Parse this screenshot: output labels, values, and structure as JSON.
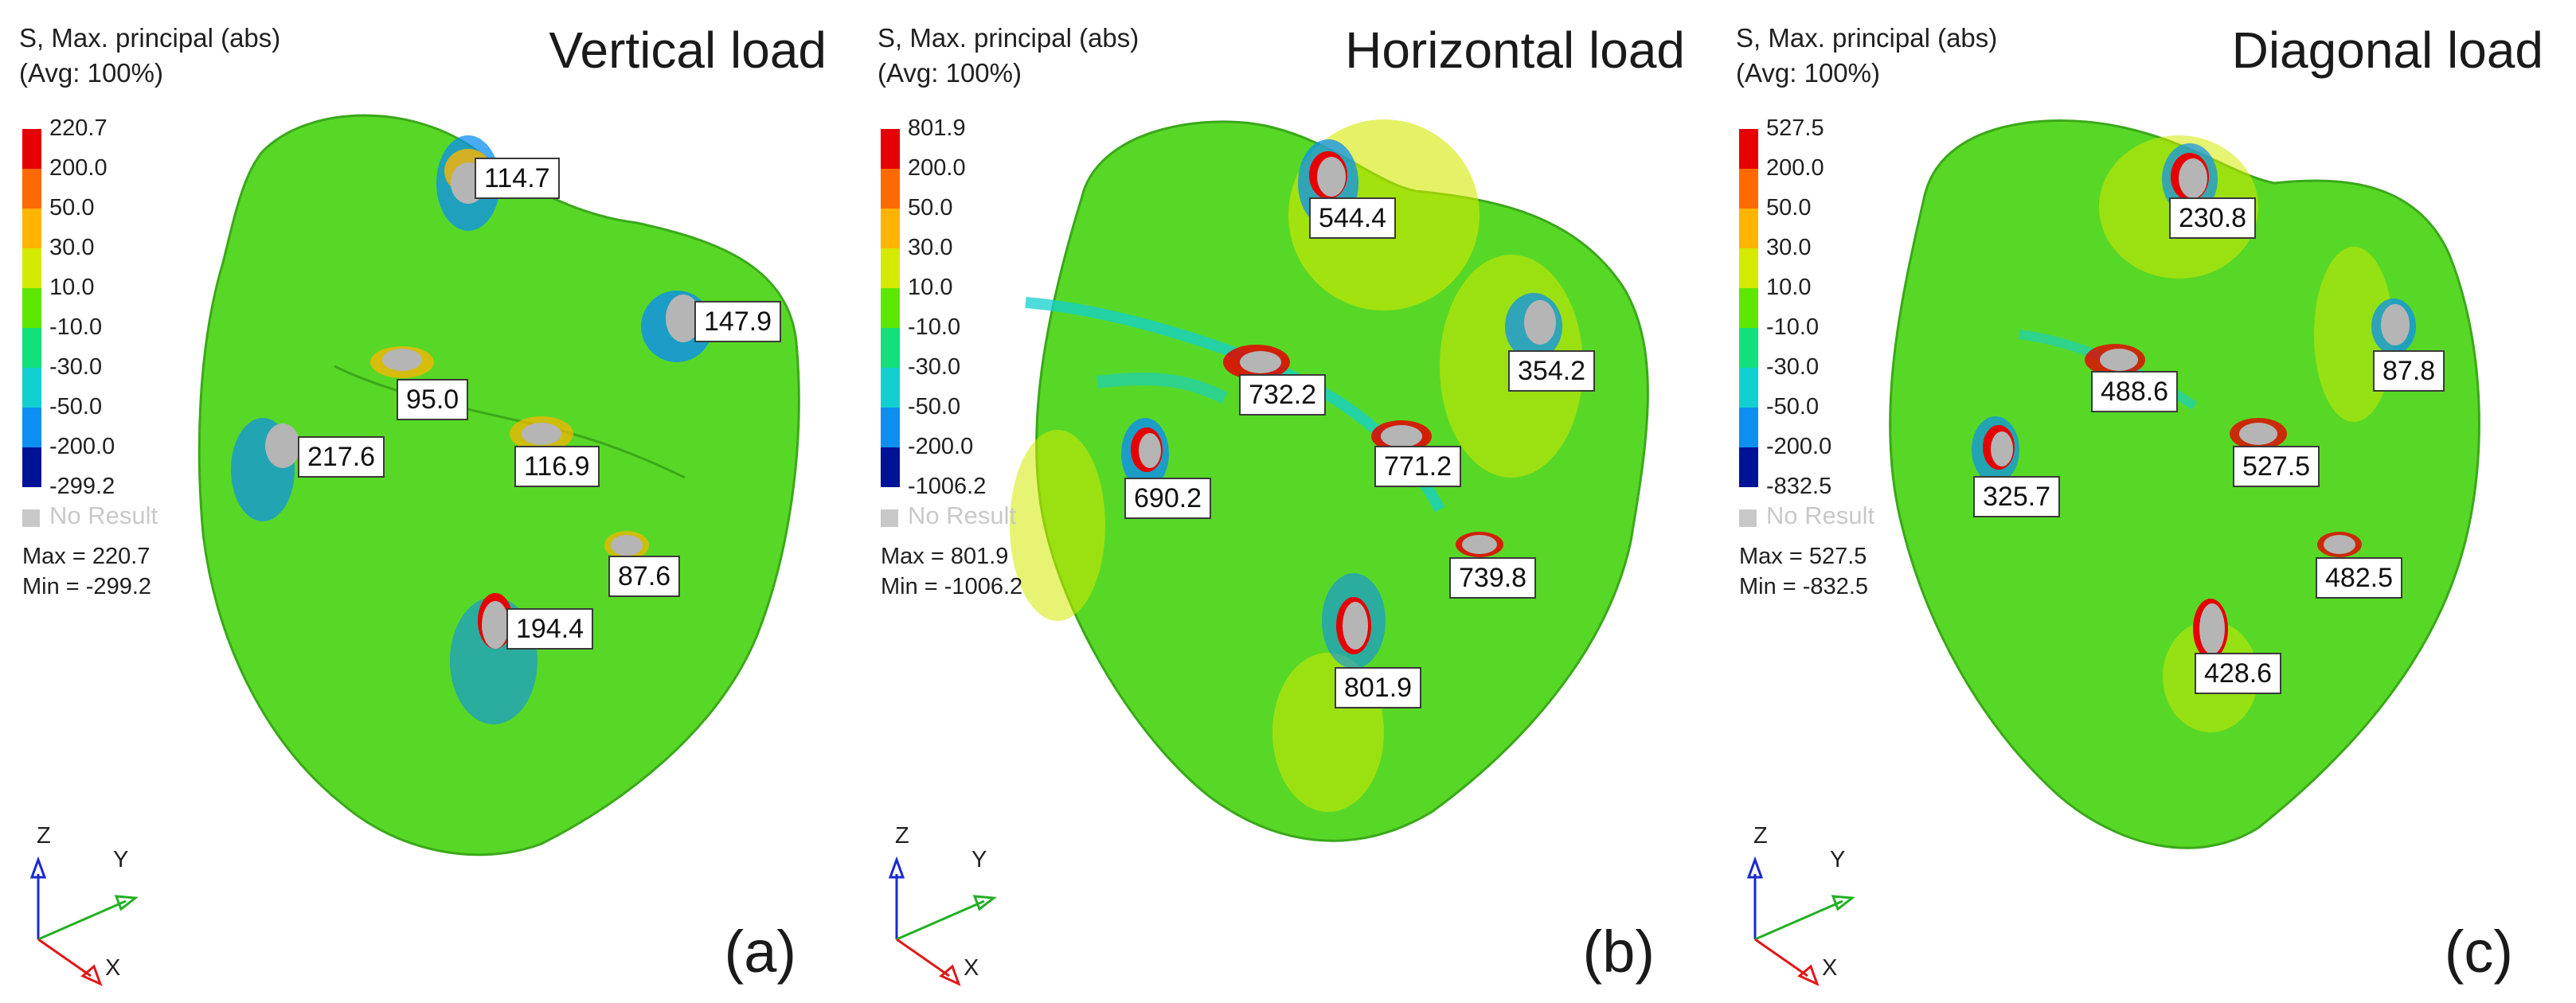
{
  "panels": [
    {
      "title": "Vertical load",
      "legend_title": "S, Max. principal (abs)\n(Avg: 100%)",
      "levels": [
        "220.7",
        "200.0",
        "50.0",
        "30.0",
        "10.0",
        "-10.0",
        "-30.0",
        "-50.0",
        "-200.0",
        "-299.2"
      ],
      "no_result": "No Result",
      "max_text": "Max = 220.7",
      "min_text": "Min = -299.2",
      "labels": [
        "114.7",
        "147.9",
        "95.0",
        "217.6",
        "116.9",
        "87.6",
        "194.4"
      ],
      "subfig": "(a)"
    },
    {
      "title": "Horizontal load",
      "legend_title": "S, Max. principal (abs)\n(Avg: 100%)",
      "levels": [
        "801.9",
        "200.0",
        "50.0",
        "30.0",
        "10.0",
        "-10.0",
        "-30.0",
        "-50.0",
        "-200.0",
        "-1006.2"
      ],
      "no_result": "No Result",
      "max_text": "Max = 801.9",
      "min_text": "Min = -1006.2",
      "labels": [
        "544.4",
        "354.2",
        "732.2",
        "690.2",
        "771.2",
        "739.8",
        "801.9"
      ],
      "subfig": "(b)"
    },
    {
      "title": "Diagonal load",
      "legend_title": "S, Max. principal (abs)\n(Avg: 100%)",
      "levels": [
        "527.5",
        "200.0",
        "50.0",
        "30.0",
        "10.0",
        "-10.0",
        "-30.0",
        "-50.0",
        "-200.0",
        "-832.5"
      ],
      "no_result": "No Result",
      "max_text": "Max = 527.5",
      "min_text": "Min = -832.5",
      "labels": [
        "230.8",
        "87.8",
        "488.6",
        "325.7",
        "527.5",
        "482.5",
        "428.6"
      ],
      "subfig": "(c)"
    }
  ],
  "axes": {
    "z": "Z",
    "y": "Y",
    "x": "X"
  },
  "legend_colors": [
    "#e60000",
    "#ff6a00",
    "#ffb400",
    "#d4ea00",
    "#5ce800",
    "#12e07a",
    "#12d0d0",
    "#0c8ff0",
    "#0a3cf0",
    "#001296"
  ],
  "tooth_color": "#58d826"
}
